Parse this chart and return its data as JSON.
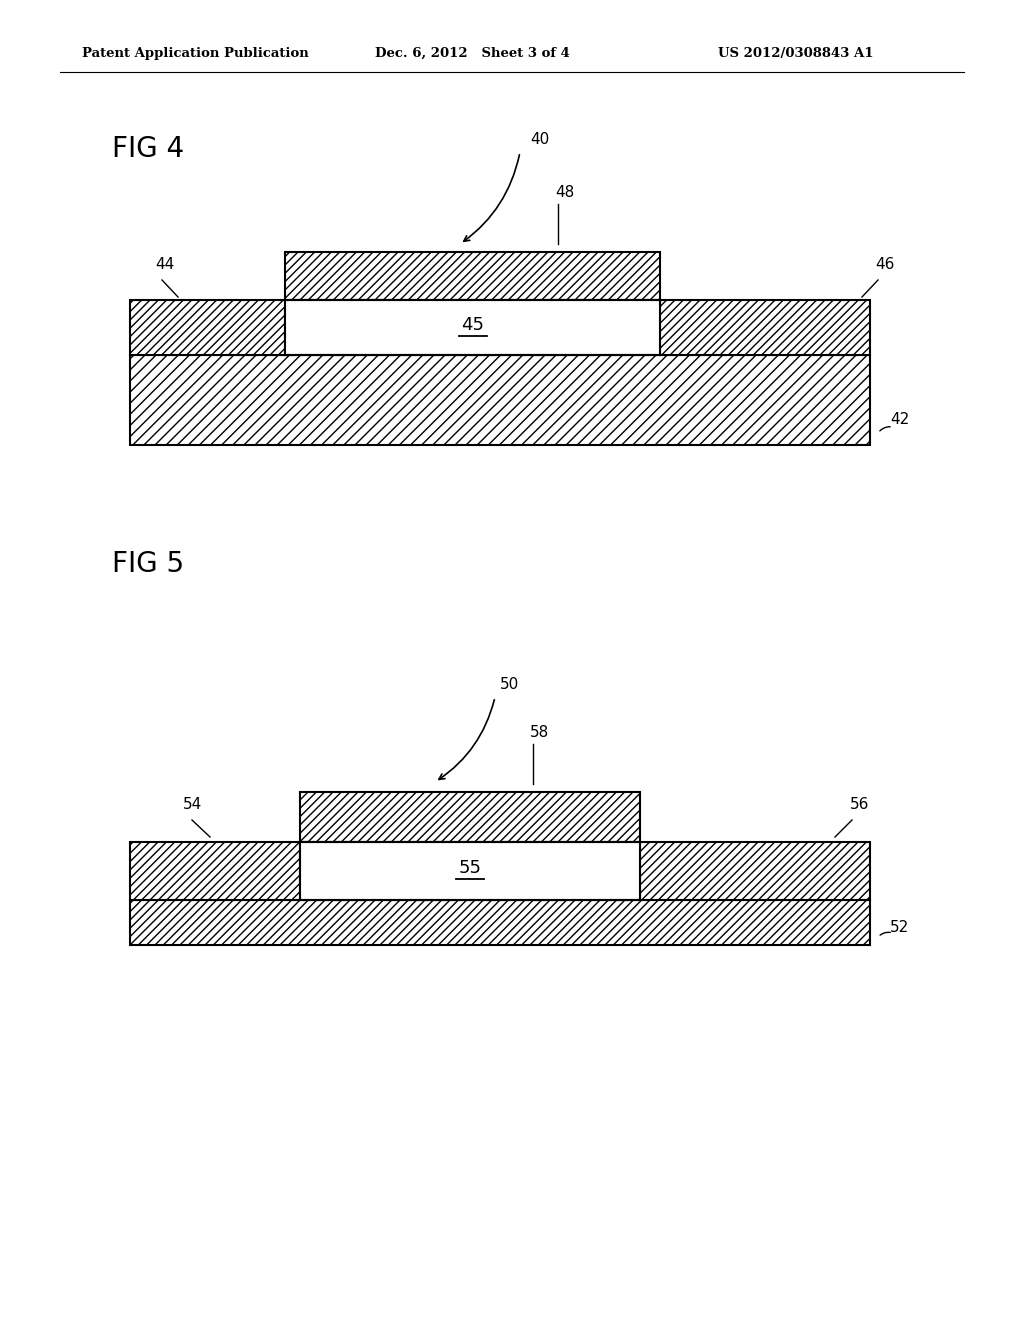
{
  "background_color": "#ffffff",
  "header_left": "Patent Application Publication",
  "header_mid": "Dec. 6, 2012   Sheet 3 of 4",
  "header_right": "US 2012/0308843 A1",
  "fig4_label": "FIG 4",
  "fig5_label": "FIG 5",
  "fig4_ref": "40",
  "fig4_base_label": "42",
  "fig4_left_label": "44",
  "fig4_right_label": "46",
  "fig4_top_label": "48",
  "fig4_cavity_label": "45",
  "fig5_ref": "50",
  "fig5_base_label": "52",
  "fig5_left_label": "54",
  "fig5_right_label": "56",
  "fig5_top_label": "58",
  "fig5_cavity_label": "55",
  "line_color": "#000000"
}
